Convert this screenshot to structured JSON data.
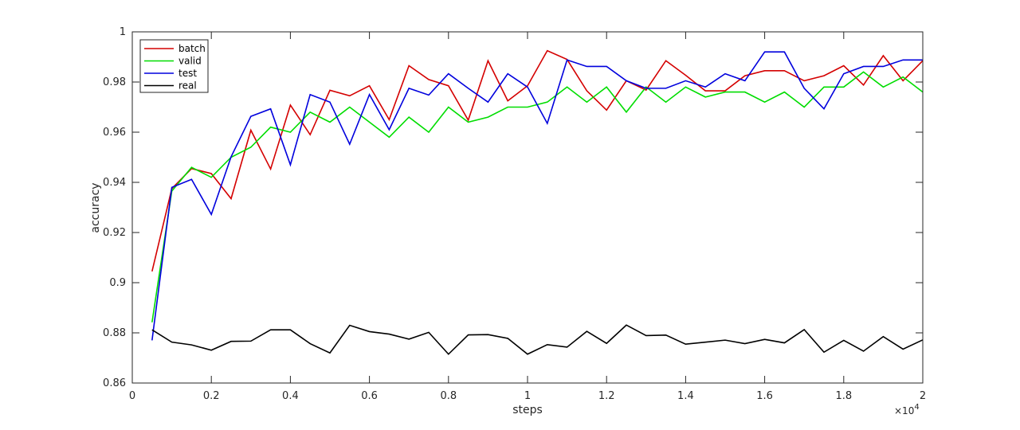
{
  "chart_data": {
    "type": "line",
    "title": "",
    "xlabel": "steps",
    "ylabel": "accuracy",
    "x_multiplier_label": "×10",
    "x_multiplier_exp": "4",
    "xlim": [
      0,
      20000
    ],
    "ylim": [
      0.86,
      1.0
    ],
    "x_ticks": [
      0,
      2000,
      4000,
      6000,
      8000,
      10000,
      12000,
      14000,
      16000,
      18000,
      20000
    ],
    "x_tick_labels": [
      "0",
      "0.2",
      "0.4",
      "0.6",
      "0.8",
      "1",
      "1.2",
      "1.4",
      "1.6",
      "1.8",
      "2"
    ],
    "y_ticks": [
      0.86,
      0.88,
      0.9,
      0.92,
      0.94,
      0.96,
      0.98,
      1.0
    ],
    "y_tick_labels": [
      "0.86",
      "0.88",
      "0.9",
      "0.92",
      "0.94",
      "0.96",
      "0.98",
      "1"
    ],
    "grid": false,
    "legend_position": "top-left",
    "x": [
      500,
      1000,
      1500,
      2000,
      2500,
      3000,
      3500,
      4000,
      4500,
      5000,
      5500,
      6000,
      6500,
      7000,
      7500,
      8000,
      8500,
      9000,
      9500,
      10000,
      10500,
      11000,
      11500,
      12000,
      12500,
      13000,
      13500,
      14000,
      14500,
      15000,
      15500,
      16000,
      16500,
      17000,
      17500,
      18000,
      18500,
      19000,
      19500,
      20000
    ],
    "series": [
      {
        "name": "batch",
        "color": "#d40000",
        "values": [
          0.9045,
          0.9375,
          0.9455,
          0.9435,
          0.9335,
          0.9608,
          0.9453,
          0.9708,
          0.959,
          0.9767,
          0.9745,
          0.9785,
          0.965,
          0.9865,
          0.981,
          0.9785,
          0.9648,
          0.9885,
          0.9725,
          0.9785,
          0.9925,
          0.989,
          0.9765,
          0.9688,
          0.9805,
          0.9768,
          0.9885,
          0.9827,
          0.9765,
          0.9765,
          0.9825,
          0.9845,
          0.9845,
          0.9805,
          0.9825,
          0.9865,
          0.9788,
          0.9905,
          0.9805,
          0.9885
        ]
      },
      {
        "name": "valid",
        "color": "#00dd00",
        "values": [
          0.8842,
          0.9365,
          0.946,
          0.942,
          0.95,
          0.954,
          0.962,
          0.96,
          0.968,
          0.964,
          0.97,
          0.964,
          0.958,
          0.966,
          0.96,
          0.97,
          0.964,
          0.966,
          0.97,
          0.97,
          0.972,
          0.978,
          0.972,
          0.978,
          0.968,
          0.978,
          0.972,
          0.978,
          0.974,
          0.976,
          0.976,
          0.972,
          0.976,
          0.97,
          0.978,
          0.978,
          0.984,
          0.978,
          0.982,
          0.976
        ]
      },
      {
        "name": "test",
        "color": "#0000dd",
        "values": [
          0.877,
          0.938,
          0.9412,
          0.9272,
          0.9502,
          0.9663,
          0.9693,
          0.947,
          0.975,
          0.972,
          0.9552,
          0.975,
          0.961,
          0.9775,
          0.9748,
          0.9833,
          0.9775,
          0.972,
          0.9833,
          0.978,
          0.9635,
          0.9888,
          0.9862,
          0.9862,
          0.9805,
          0.9775,
          0.9775,
          0.9805,
          0.978,
          0.9833,
          0.9805,
          0.992,
          0.992,
          0.9775,
          0.9693,
          0.9833,
          0.9862,
          0.9862,
          0.9888,
          0.9888
        ]
      },
      {
        "name": "real",
        "color": "#000000",
        "values": [
          0.8812,
          0.8763,
          0.8752,
          0.8731,
          0.8766,
          0.8767,
          0.8812,
          0.8812,
          0.8757,
          0.872,
          0.883,
          0.8805,
          0.8795,
          0.8775,
          0.8802,
          0.8715,
          0.8792,
          0.8793,
          0.8778,
          0.8715,
          0.8753,
          0.8743,
          0.8806,
          0.8758,
          0.8831,
          0.8789,
          0.8791,
          0.8755,
          0.8763,
          0.8771,
          0.8757,
          0.8774,
          0.876,
          0.8813,
          0.8723,
          0.877,
          0.8727,
          0.8785,
          0.8735,
          0.8772
        ]
      }
    ]
  }
}
